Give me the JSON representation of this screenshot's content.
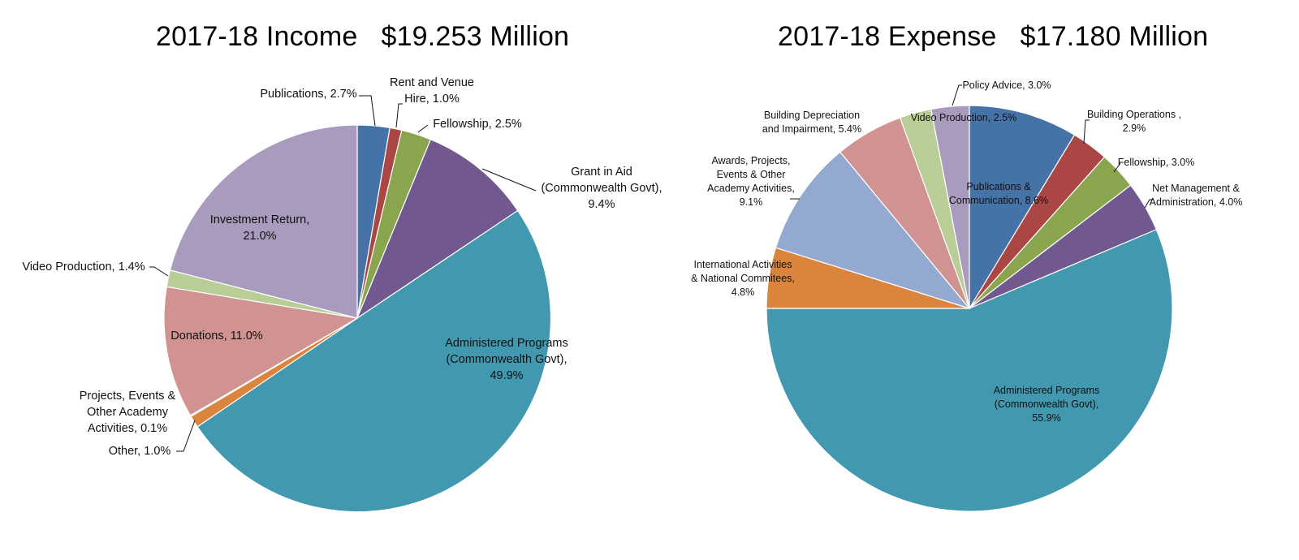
{
  "chart_data": [
    {
      "type": "pie",
      "title": "2017-18 Income   $19.253 Million",
      "start": "12 o'clock",
      "direction": "clockwise",
      "slices": [
        {
          "label": "Publications, 2.7%",
          "value": 2.7,
          "color": "#4572A7"
        },
        {
          "label": "Rent and Venue Hire, 1.0%",
          "value": 1.0,
          "color": "#AA4643"
        },
        {
          "label": "Fellowship, 2.5%",
          "value": 2.5,
          "color": "#89A54E"
        },
        {
          "label": "Grant in Aid (Commonwealth Govt), 9.4%",
          "value": 9.4,
          "color": "#71588F"
        },
        {
          "label": "Administered Programs (Commonwealth Govt), 49.9%",
          "value": 49.9,
          "color": "#4198AF"
        },
        {
          "label": "Other, 1.0%",
          "value": 1.0,
          "color": "#DB843D"
        },
        {
          "label": "Projects, Events & Other Academy Activities, 0.1%",
          "value": 0.1,
          "color": "#93A9CF"
        },
        {
          "label": "Donations, 11.0%",
          "value": 11.0,
          "color": "#D19392"
        },
        {
          "label": "Video Production, 1.4%",
          "value": 1.4,
          "color": "#B9CD96"
        },
        {
          "label": "Investment Return, 21.0%",
          "value": 21.0,
          "color": "#A99BBD"
        }
      ]
    },
    {
      "type": "pie",
      "title": "2017-18 Expense   $17.180 Million",
      "start": "12 o'clock",
      "direction": "clockwise",
      "slices": [
        {
          "label": "Publications & Communication, 8.6%",
          "value": 8.6,
          "color": "#4572A7"
        },
        {
          "label": "Building Operations , 2.9%",
          "value": 2.9,
          "color": "#AA4643"
        },
        {
          "label": "Fellowship, 3.0%",
          "value": 3.0,
          "color": "#89A54E"
        },
        {
          "label": "Net Management & Administration, 4.0%",
          "value": 4.0,
          "color": "#71588F"
        },
        {
          "label": "Administered Programs (Commonwealth Govt), 55.9%",
          "value": 55.9,
          "color": "#4198AF"
        },
        {
          "label": "International Activities & National Commitees, 4.8%",
          "value": 4.8,
          "color": "#DB843D"
        },
        {
          "label": "Awards, Projects, Events & Other Academy Activities, 9.1%",
          "value": 9.1,
          "color": "#93A9CF"
        },
        {
          "label": "Building Depreciation and Impairment, 5.4%",
          "value": 5.4,
          "color": "#D19392"
        },
        {
          "label": "Video Production, 2.5%",
          "value": 2.5,
          "color": "#B9CD96"
        },
        {
          "label": "Policy Advice, 3.0%",
          "value": 3.0,
          "color": "#A99BBD"
        }
      ]
    }
  ],
  "label_lines": {
    "income": [
      [
        "Publications, 2.7%"
      ],
      [
        "Rent and Venue",
        "Hire, 1.0%"
      ],
      [
        "Fellowship, 2.5%"
      ],
      [
        "Grant in Aid",
        "(Commonwealth Govt),",
        "9.4%"
      ],
      [
        "Administered Programs",
        "(Commonwealth Govt),",
        "49.9%"
      ],
      [
        "Other, 1.0%"
      ],
      [
        "Projects, Events &",
        "Other Academy",
        "Activities, 0.1%"
      ],
      [
        "Donations, 11.0%"
      ],
      [
        "Video Production, 1.4%"
      ],
      [
        "Investment Return,",
        "21.0%"
      ]
    ],
    "expense": [
      [
        "Publications &",
        "Communication, 8.6%"
      ],
      [
        "Building Operations ,",
        "2.9%"
      ],
      [
        "Fellowship, 3.0%"
      ],
      [
        "Net Management &",
        "Administration, 4.0%"
      ],
      [
        "Administered Programs",
        "(Commonwealth Govt),",
        "55.9%"
      ],
      [
        "International Activities",
        "& National Commitees,",
        "4.8%"
      ],
      [
        "Awards, Projects,",
        "Events & Other",
        "Academy Activities,",
        "9.1%"
      ],
      [
        "Building Depreciation",
        "and Impairment, 5.4%"
      ],
      [
        "Video Production, 2.5%"
      ],
      [
        "Policy Advice, 3.0%"
      ]
    ]
  }
}
